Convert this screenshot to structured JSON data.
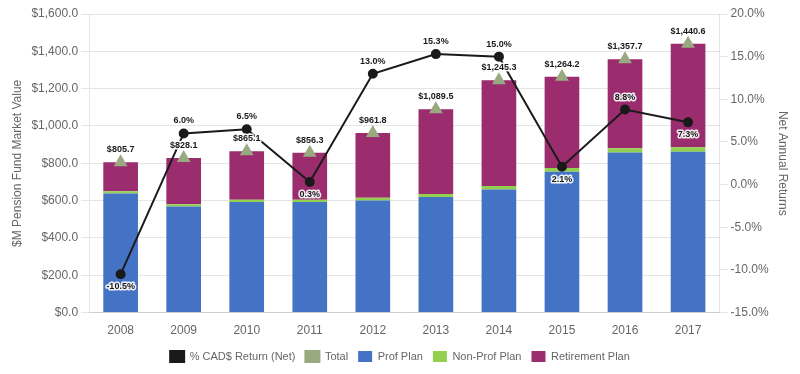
{
  "chart_data": {
    "type": "bar",
    "categories": [
      "2008",
      "2009",
      "2010",
      "2011",
      "2012",
      "2013",
      "2014",
      "2015",
      "2016",
      "2017"
    ],
    "stacked": true,
    "grid": true,
    "legend": "bottom",
    "ylabel": "$M Pension Fund Market Value",
    "y2label": "Net Annual Returns",
    "ylim": [
      0,
      1600
    ],
    "yticks": [
      {
        "value": 0,
        "label": "$0.0"
      },
      {
        "value": 200,
        "label": "$200.0"
      },
      {
        "value": 400,
        "label": "$400.0"
      },
      {
        "value": 600,
        "label": "$600.0"
      },
      {
        "value": 800,
        "label": "$800.0"
      },
      {
        "value": 1000,
        "label": "$1,000.0"
      },
      {
        "value": 1200,
        "label": "$1,200.0"
      },
      {
        "value": 1400,
        "label": "$1,400.0"
      },
      {
        "value": 1600,
        "label": "$1,600.0"
      }
    ],
    "y2lim": [
      -15,
      20
    ],
    "y2ticks": [
      {
        "value": -15,
        "label": "-15.0%"
      },
      {
        "value": -10,
        "label": "-10.0%"
      },
      {
        "value": -5,
        "label": "-5.0%"
      },
      {
        "value": 0,
        "label": "0.0%"
      },
      {
        "value": 5,
        "label": "5.0%"
      },
      {
        "value": 10,
        "label": "10.0%"
      },
      {
        "value": 15,
        "label": "15.0%"
      },
      {
        "value": 20,
        "label": "20.0%"
      }
    ],
    "series": [
      {
        "name": "Prof Plan",
        "type": "bar",
        "color": "#4472C4",
        "values": [
          638,
          568,
          593,
          593,
          601,
          620,
          660,
          755,
          858,
          862
        ]
      },
      {
        "name": "Non-Prof Plan",
        "type": "bar",
        "color": "#92D050",
        "values": [
          12,
          12,
          12,
          12,
          14,
          16,
          18,
          20,
          22,
          24
        ]
      },
      {
        "name": "Retirement Plan",
        "type": "bar",
        "color": "#9B2C6E",
        "values": [
          155.7,
          248.1,
          260.1,
          251.3,
          346.8,
          453.5,
          567.3,
          489.2,
          477.7,
          554.6
        ]
      },
      {
        "name": "Total",
        "type": "line",
        "marker": "triangle",
        "line_style": "none",
        "color": "#9AAA80",
        "values": [
          805.7,
          828.1,
          865.1,
          856.3,
          961.8,
          1089.5,
          1245.3,
          1264.2,
          1357.7,
          1440.6
        ],
        "data_labels": true,
        "value_labels": [
          "$805.7",
          "$828.1",
          "$865.1",
          "$856.3",
          "$961.8",
          "$1,089.5",
          "$1,245.3",
          "$1,264.2",
          "$1,357.7",
          "$1,440.6"
        ]
      },
      {
        "name": "% CAD$ Return (Net)",
        "type": "line",
        "axis": "y2",
        "marker": "circle",
        "line_style": "solid",
        "color": "#1A1A1A",
        "values": [
          -10.5,
          6.0,
          6.5,
          0.3,
          13.0,
          15.3,
          15.0,
          2.1,
          8.8,
          7.3
        ],
        "data_labels": true,
        "value_labels": [
          "-10.5%",
          "6.0%",
          "6.5%",
          "0.3%",
          "13.0%",
          "15.3%",
          "15.0%",
          "2.1%",
          "8.8%",
          "7.3%"
        ]
      }
    ]
  }
}
